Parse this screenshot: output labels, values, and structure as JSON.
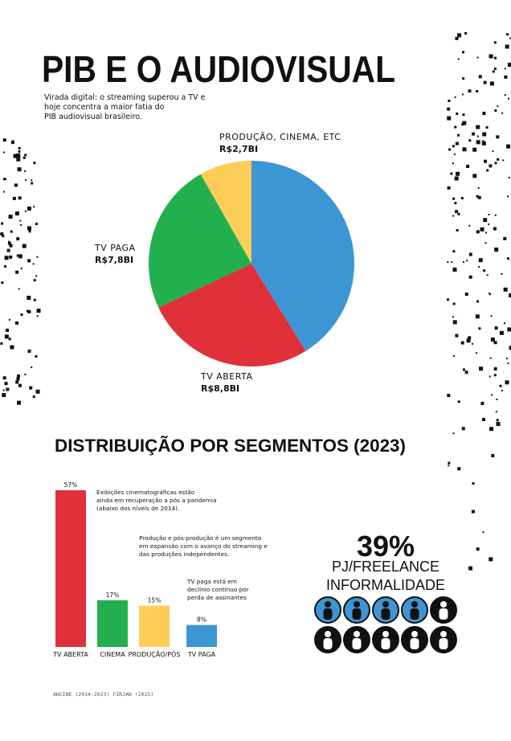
{
  "header": {
    "title": "PIB E O AUDIOVISUAL",
    "subtitle": [
      "Virada digital: o streaming superou a TV e",
      "hoje concentra a maior fatia do",
      "PIB audiovisual brasileiro."
    ]
  },
  "chart_data": [
    {
      "type": "pie",
      "categories": [
        null,
        "TV ABERTA",
        "TV PAGA",
        "PRODUÇÃO, CINEMA, ETC"
      ],
      "values": [
        13.5,
        8.8,
        7.8,
        2.7
      ],
      "value_labels": [
        null,
        "R$8,8BI",
        "R$7,8BI",
        "R$2,7BI"
      ],
      "colors": [
        "#3d95d3",
        "#e0303a",
        "#22b04f",
        "#fdcd57"
      ]
    },
    {
      "type": "bar",
      "title": "DISTRIBUIÇÃO POR SEGMENTOS (2023)",
      "categories": [
        "TV ABERTA",
        "CINEMA",
        "PRODUÇÃO/PÓS",
        "TV PAGA"
      ],
      "values": [
        57,
        17,
        15,
        8
      ],
      "value_labels": [
        "57%",
        "17%",
        "15%",
        "8%"
      ],
      "colors": [
        "#e0303a",
        "#22b04f",
        "#fdcd57",
        "#3d95d3"
      ],
      "annotations": [
        [
          "Exibições cinematográficas estão",
          "ainda em recuperação a pós a pandemia",
          "(abaixo dos níveis de 2014)."
        ],
        [
          "Produção e pós-produção é um segmento",
          "em expansão com o avanço do streaming e",
          "das produções independentes."
        ],
        [
          "TV paga está em",
          "declínio contínuo por",
          "perda de assinantes"
        ]
      ]
    }
  ],
  "stat": {
    "value": "39%",
    "label": [
      "PJ/FREELANCE",
      "INFORMALIDADE"
    ]
  },
  "source": "ANCINE (2014-2023) FIRJAN (2025)"
}
